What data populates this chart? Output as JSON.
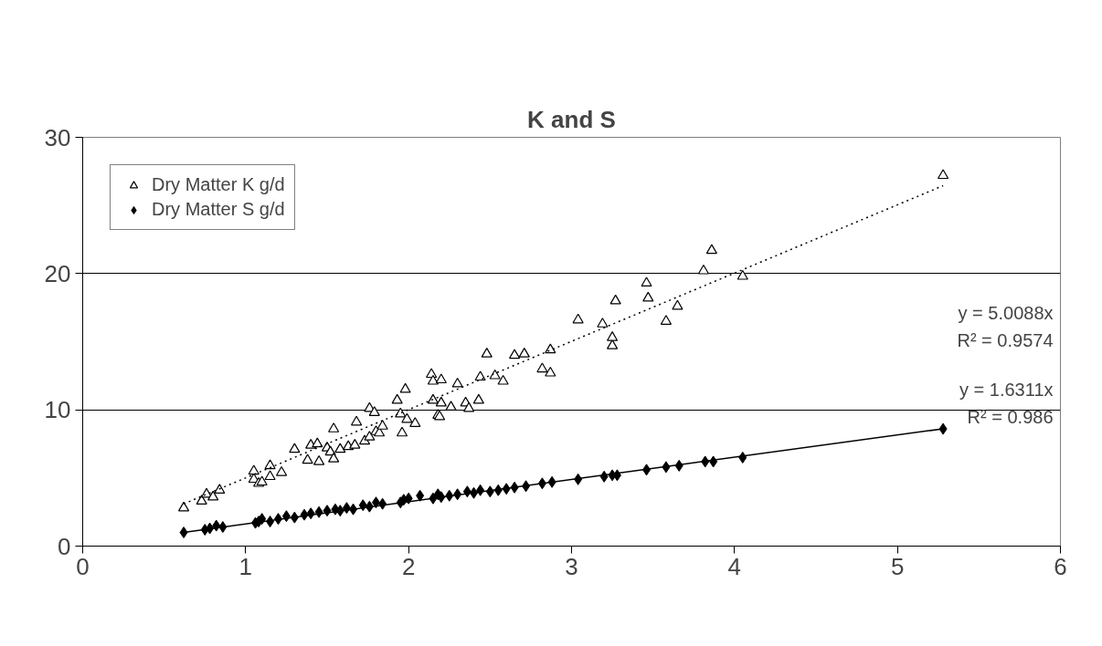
{
  "chart_data": {
    "type": "scatter",
    "title": "K and S",
    "xlim": [
      0,
      6
    ],
    "xticks": [
      0,
      1,
      2,
      3,
      4,
      5,
      6
    ],
    "ylim": [
      0,
      30
    ],
    "yticks": [
      0,
      10,
      20,
      30
    ],
    "grid": "y",
    "legend": "top left",
    "series": [
      {
        "name": "Dry Matter K g/d",
        "color": "#000000",
        "marker": "triangle",
        "x": [
          0.62,
          0.73,
          0.76,
          0.8,
          0.84,
          1.05,
          1.05,
          1.08,
          1.1,
          1.15,
          1.15,
          1.22,
          1.3,
          1.38,
          1.4,
          1.44,
          1.45,
          1.5,
          1.52,
          1.54,
          1.54,
          1.58,
          1.63,
          1.67,
          1.68,
          1.73,
          1.76,
          1.76,
          1.79,
          1.8,
          1.82,
          1.84,
          1.93,
          1.95,
          1.96,
          1.98,
          1.99,
          2.04,
          2.14,
          2.15,
          2.15,
          2.18,
          2.19,
          2.2,
          2.2,
          2.26,
          2.3,
          2.35,
          2.37,
          2.43,
          2.44,
          2.48,
          2.53,
          2.58,
          2.65,
          2.71,
          2.82,
          2.87,
          2.87,
          3.04,
          3.19,
          3.25,
          3.25,
          3.27,
          3.46,
          3.47,
          3.58,
          3.65,
          3.81,
          3.86,
          4.05,
          5.28
        ],
        "values": [
          2.8,
          3.3,
          3.8,
          3.6,
          4.1,
          4.9,
          5.5,
          4.6,
          4.7,
          5.9,
          5.1,
          5.4,
          7.1,
          6.3,
          7.4,
          7.5,
          6.2,
          7.2,
          6.9,
          6.4,
          8.6,
          7.1,
          7.3,
          7.4,
          9.1,
          7.7,
          8.0,
          10.1,
          9.8,
          8.4,
          8.3,
          8.8,
          10.7,
          9.7,
          8.3,
          11.5,
          9.3,
          9.0,
          12.6,
          12.1,
          10.7,
          9.6,
          9.5,
          12.2,
          10.5,
          10.2,
          11.9,
          10.5,
          10.1,
          10.7,
          12.4,
          14.1,
          12.5,
          12.1,
          14.0,
          14.1,
          13.0,
          14.4,
          12.7,
          16.6,
          16.3,
          14.7,
          15.3,
          18.0,
          19.3,
          18.2,
          16.5,
          17.6,
          20.2,
          21.7,
          19.8,
          27.2
        ]
      },
      {
        "name": "Dry Matter S g/d",
        "color": "#000000",
        "marker": "diamond",
        "x": [
          0.62,
          0.75,
          0.78,
          0.82,
          0.86,
          1.06,
          1.08,
          1.1,
          1.15,
          1.2,
          1.25,
          1.3,
          1.36,
          1.4,
          1.45,
          1.5,
          1.55,
          1.58,
          1.62,
          1.66,
          1.72,
          1.76,
          1.8,
          1.84,
          1.95,
          1.97,
          2.0,
          2.07,
          2.15,
          2.18,
          2.2,
          2.25,
          2.3,
          2.36,
          2.4,
          2.44,
          2.5,
          2.55,
          2.6,
          2.65,
          2.72,
          2.82,
          2.88,
          3.04,
          3.2,
          3.25,
          3.28,
          3.46,
          3.58,
          3.66,
          3.82,
          3.87,
          4.05,
          5.28
        ],
        "values": [
          1.0,
          1.2,
          1.3,
          1.5,
          1.4,
          1.7,
          1.8,
          2.0,
          1.8,
          2.0,
          2.2,
          2.1,
          2.3,
          2.4,
          2.5,
          2.6,
          2.7,
          2.6,
          2.8,
          2.7,
          3.0,
          2.9,
          3.2,
          3.1,
          3.2,
          3.4,
          3.5,
          3.7,
          3.5,
          3.8,
          3.6,
          3.7,
          3.8,
          4.0,
          3.9,
          4.1,
          4.0,
          4.1,
          4.2,
          4.3,
          4.4,
          4.6,
          4.7,
          4.9,
          5.1,
          5.2,
          5.2,
          5.6,
          5.8,
          5.9,
          6.2,
          6.2,
          6.5,
          8.6
        ]
      },
      {
        "type": "line",
        "color": "#000000",
        "line_style": "dotted",
        "x": [
          0.62,
          5.28
        ],
        "values": [
          3.1,
          26.45
        ]
      },
      {
        "type": "line",
        "color": "#000000",
        "line_style": "solid",
        "x": [
          0.62,
          5.28
        ],
        "values": [
          1.01,
          8.61
        ]
      }
    ],
    "annotations": [
      "y = 5.0088x",
      "R² = 0.9574",
      "y = 1.6311x",
      "R² = 0.986"
    ]
  }
}
